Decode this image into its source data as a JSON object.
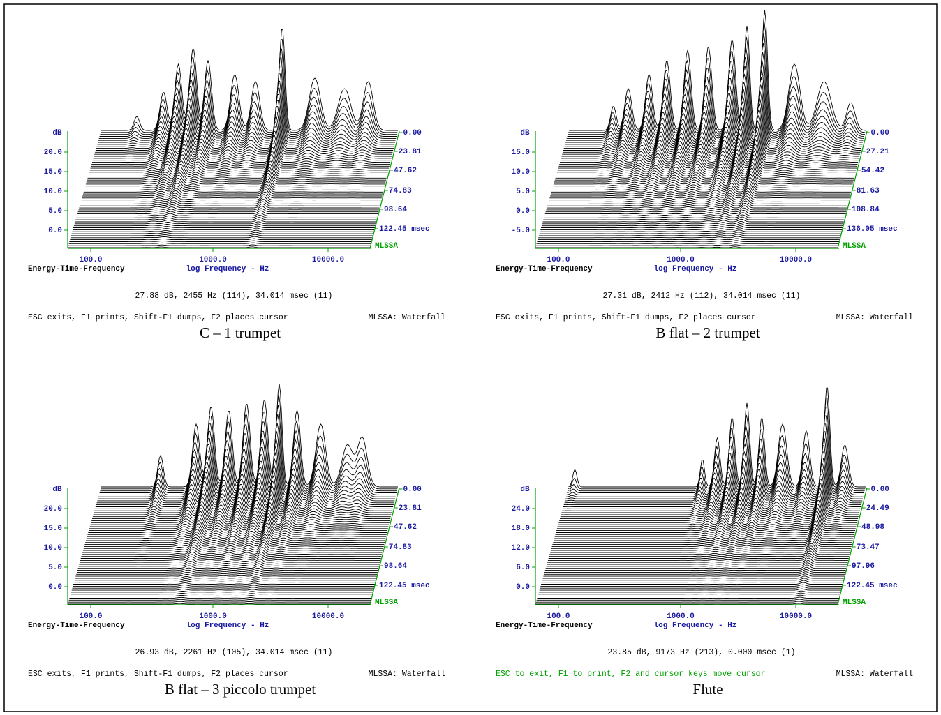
{
  "panels": [
    {
      "y_unit": "dB",
      "y_ticks": [
        "20.0",
        "15.0",
        "10.0",
        "5.0",
        "0.0"
      ],
      "x_ticks": [
        "100.0",
        "1000.0",
        "10000.0"
      ],
      "plot_name": "Energy-Time-Frequency",
      "x_axis_label": "log Frequency - Hz",
      "time_ticks": [
        "0.00",
        "23.81",
        "47.62",
        "74.83",
        "98.64",
        "122.45 msec"
      ],
      "brand": "MLSSA",
      "cursor_readout": "27.88 dB, 2455 Hz (114), 34.014 msec (11)",
      "help_text": "ESC exits, F1 prints, Shift-F1 dumps, F2 places cursor",
      "help_color": "#000000",
      "mode": "MLSSA: Waterfall",
      "caption": "C – 1 trumpet"
    },
    {
      "y_unit": "dB",
      "y_ticks": [
        "15.0",
        "10.0",
        "5.0",
        "0.0",
        "-5.0"
      ],
      "x_ticks": [
        "100.0",
        "1000.0",
        "10000.0"
      ],
      "plot_name": "Energy-Time-Frequency",
      "x_axis_label": "log Frequency - Hz",
      "time_ticks": [
        "0.00",
        "27.21",
        "54.42",
        "81.63",
        "108.84",
        "136.05 msec"
      ],
      "brand": "MLSSA",
      "cursor_readout": "27.31 dB, 2412 Hz (112), 34.014 msec (11)",
      "help_text": "ESC exits, F1 prints, Shift-F1 dumps, F2 places cursor",
      "help_color": "#000000",
      "mode": "MLSSA: Waterfall",
      "caption": "B flat – 2 trumpet"
    },
    {
      "y_unit": "dB",
      "y_ticks": [
        "20.0",
        "15.0",
        "10.0",
        "5.0",
        "0.0"
      ],
      "x_ticks": [
        "100.0",
        "1000.0",
        "10000.0"
      ],
      "plot_name": "Energy-Time-Frequency",
      "x_axis_label": "log Frequency - Hz",
      "time_ticks": [
        "0.00",
        "23.81",
        "47.62",
        "74.83",
        "98.64",
        "122.45 msec"
      ],
      "brand": "MLSSA",
      "cursor_readout": "26.93 dB, 2261 Hz (105), 34.014 msec (11)",
      "help_text": "ESC exits, F1 prints, Shift-F1 dumps, F2 places cursor",
      "help_color": "#000000",
      "mode": "MLSSA: Waterfall",
      "caption": "B flat – 3 piccolo trumpet"
    },
    {
      "y_unit": "dB",
      "y_ticks": [
        "24.0",
        "18.0",
        "12.0",
        "6.0",
        "0.0"
      ],
      "x_ticks": [
        "100.0",
        "1000.0",
        "10000.0"
      ],
      "plot_name": "Energy-Time-Frequency",
      "x_axis_label": "log Frequency - Hz",
      "time_ticks": [
        "0.00",
        "24.49",
        "48.98",
        "73.47",
        "97.96",
        "122.45 msec"
      ],
      "brand": "MLSSA",
      "cursor_readout": "23.85 dB, 9173 Hz (213), 0.000 msec (1)",
      "help_text": "ESC to exit, F1 to print, F2 and cursor keys move cursor",
      "help_color": "#00a000",
      "mode": "MLSSA: Waterfall",
      "caption": "Flute"
    }
  ]
}
